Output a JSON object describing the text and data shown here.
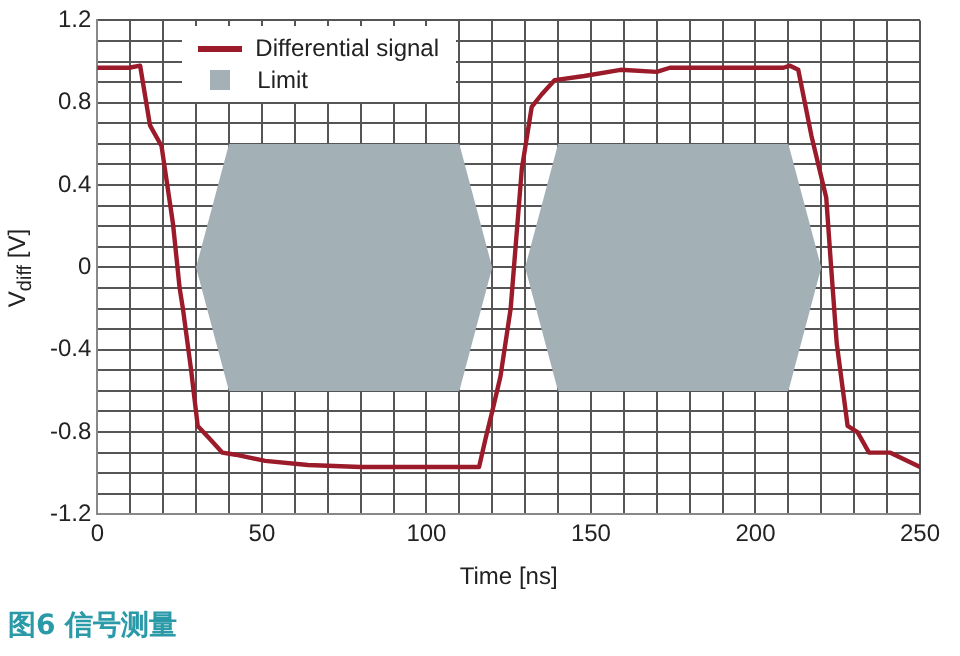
{
  "chart_data": {
    "type": "line",
    "xlabel": "Time [ns]",
    "ylabel": "V$_{diff}$ [V]",
    "xlim": [
      0,
      250
    ],
    "ylim": [
      -1.2,
      1.2
    ],
    "xticks": [
      0,
      {
        "value": 10,
        "label": null
      },
      {
        "value": 20,
        "label": null
      },
      {
        "value": 30,
        "label": null
      },
      {
        "value": 40,
        "label": null
      },
      50,
      {
        "value": 60,
        "label": null
      },
      {
        "value": 70,
        "label": null
      },
      {
        "value": 80,
        "label": null
      },
      {
        "value": 90,
        "label": null
      },
      100,
      {
        "value": 110,
        "label": null
      },
      {
        "value": 120,
        "label": null
      },
      {
        "value": 130,
        "label": null
      },
      {
        "value": 140,
        "label": null
      },
      150,
      {
        "value": 160,
        "label": null
      },
      {
        "value": 170,
        "label": null
      },
      {
        "value": 180,
        "label": null
      },
      {
        "value": 190,
        "label": null
      },
      200,
      {
        "value": 210,
        "label": null
      },
      {
        "value": 220,
        "label": null
      },
      {
        "value": 230,
        "label": null
      },
      {
        "value": 240,
        "label": null
      },
      250
    ],
    "yticks": [
      -1.2,
      {
        "value": -1.1,
        "label": null
      },
      {
        "value": -1.0,
        "label": null
      },
      {
        "value": -0.9,
        "label": null
      },
      -0.8,
      {
        "value": -0.7,
        "label": null
      },
      {
        "value": -0.6,
        "label": null
      },
      {
        "value": -0.5,
        "label": null
      },
      -0.4,
      {
        "value": -0.3,
        "label": null
      },
      {
        "value": -0.2,
        "label": null
      },
      {
        "value": -0.1,
        "label": null
      },
      0,
      {
        "value": 0.1,
        "label": null
      },
      {
        "value": 0.2,
        "label": null
      },
      {
        "value": 0.3,
        "label": null
      },
      0.4,
      {
        "value": 0.5,
        "label": null
      },
      {
        "value": 0.6,
        "label": null
      },
      {
        "value": 0.7,
        "label": null
      },
      0.8,
      {
        "value": 0.9,
        "label": null
      },
      {
        "value": 1.0,
        "label": null
      },
      {
        "value": 1.1,
        "label": null
      },
      1.2
    ],
    "grid": true,
    "legend": "top left",
    "marker": "none",
    "line_style": "solid",
    "series": [
      {
        "name": "Differential signal",
        "type": "line",
        "color": "#9b1b2a",
        "x": [
          0,
          9.7,
          13,
          16,
          19.5,
          23,
          25,
          26,
          28.5,
          30.5,
          34,
          38,
          42,
          51,
          64,
          80,
          116,
          118,
          120,
          122.5,
          125.6,
          129,
          132,
          135,
          139,
          148,
          159,
          170,
          174,
          208.5,
          210.5,
          213,
          217,
          221.5,
          223,
          224.7,
          228,
          231,
          234.5,
          241,
          250
        ],
        "values": [
          0.97,
          0.97,
          0.98,
          0.69,
          0.59,
          0.21,
          -0.1,
          -0.2,
          -0.5,
          -0.77,
          -0.83,
          -0.9,
          -0.91,
          -0.94,
          -0.96,
          -0.97,
          -0.97,
          -0.83,
          -0.7,
          -0.53,
          -0.2,
          0.48,
          0.78,
          0.84,
          0.91,
          0.93,
          0.96,
          0.95,
          0.97,
          0.97,
          0.98,
          0.96,
          0.64,
          0.34,
          0,
          -0.37,
          -0.77,
          -0.8,
          -0.9,
          -0.9,
          -0.97
        ]
      },
      {
        "name": "Limit",
        "type": "area",
        "color": "#a3b1b6",
        "x": [
          30,
          40,
          110,
          120,
          110,
          40,
          30
        ],
        "values": [
          0,
          0.6,
          0.6,
          0,
          -0.6,
          -0.6,
          0
        ]
      },
      {
        "type": "area",
        "color": "#a3b1b6",
        "x": [
          130,
          140,
          210,
          220,
          210,
          140,
          130
        ],
        "values": [
          0,
          0.6,
          0.6,
          0,
          -0.6,
          -0.6,
          0
        ]
      }
    ],
    "annotations": [
      "图6 信号测量"
    ]
  }
}
